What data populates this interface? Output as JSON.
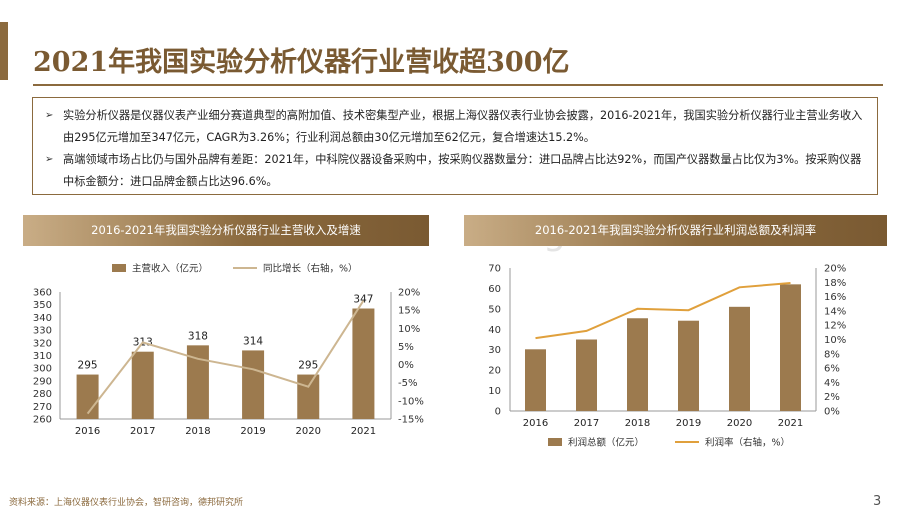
{
  "slide": {
    "title": "2021年我国实验分析仪器行业营收超300亿",
    "bullets": [
      "实验分析仪器是仪器仪表产业细分赛道典型的高附加值、技术密集型产业，根据上海仪器仪表行业协会披露，2016-2021年，我国实验分析仪器行业主营业务收入由295亿元增加至347亿元，CAGR为3.26%；行业利润总额由30亿元增加至62亿元，复合增速达15.2%。",
      "高端领域市场占比仍与国外品牌有差距：2021年，中科院仪器设备采购中，按采购仪器数量分：进口品牌占比达92%，而国产仪器数量占比仅为3%。按采购仪器中标金额分：进口品牌金额占比达96.6%。"
    ],
    "bullet_mark": "➢",
    "source": "资料来源：上海仪器仪表行业协会，智研咨询，德邦研究所",
    "page_number": "3",
    "watermark": "baogao.com"
  },
  "colors": {
    "accent": "#8b6a3e",
    "bar": "#9c7a4e",
    "line": "#cdb691",
    "line2": "#e0a03c"
  },
  "chart_data": [
    {
      "type": "bar",
      "title": "2016-2021年我国实验分析仪器行业主营收入及增速",
      "categories": [
        "2016",
        "2017",
        "2018",
        "2019",
        "2020",
        "2021"
      ],
      "series": [
        {
          "name": "主营收入（亿元）",
          "values": [
            295,
            313,
            318,
            314,
            295,
            347
          ],
          "axis": "left",
          "kind": "bar"
        },
        {
          "name": "同比增长（右轴，%）",
          "values": [
            -13.5,
            6.1,
            1.6,
            -1.3,
            -6.1,
            17.6
          ],
          "axis": "right",
          "kind": "line"
        }
      ],
      "y_ticks": [
        "360",
        "350",
        "340",
        "330",
        "320",
        "310",
        "300",
        "290",
        "280",
        "270",
        "260"
      ],
      "y2_ticks": [
        "20%",
        "15%",
        "10%",
        "5%",
        "0%",
        "-5%",
        "-10%",
        "-15%"
      ],
      "ylim": [
        260,
        360
      ],
      "y2lim": [
        -15,
        20
      ],
      "legend": "top",
      "grid": false
    },
    {
      "type": "bar",
      "title": "2016-2021年我国实验分析仪器行业利润总额及利润率",
      "categories": [
        "2016",
        "2017",
        "2018",
        "2019",
        "2020",
        "2021"
      ],
      "series": [
        {
          "name": "利润总额（亿元）",
          "values": [
            30.2,
            35,
            45.4,
            44.2,
            51,
            62
          ],
          "axis": "left",
          "kind": "bar"
        },
        {
          "name": "利润率（右轴，%）",
          "values": [
            10.2,
            11.2,
            14.3,
            14.1,
            17.3,
            17.9
          ],
          "axis": "right",
          "kind": "line"
        }
      ],
      "y_ticks": [
        "70",
        "60",
        "50",
        "40",
        "30",
        "20",
        "10",
        "0"
      ],
      "y2_ticks": [
        "20%",
        "18%",
        "16%",
        "14%",
        "12%",
        "10%",
        "8%",
        "6%",
        "4%",
        "2%",
        "0%"
      ],
      "ylim": [
        0,
        70
      ],
      "y2lim": [
        0,
        20
      ],
      "legend": "bottom",
      "grid": false
    }
  ]
}
